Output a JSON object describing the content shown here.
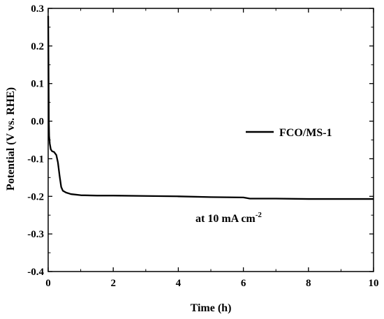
{
  "chart_data": {
    "type": "line",
    "xlabel": "Time (h)",
    "ylabel": "Potential (V vs. RHE)",
    "xlim": [
      0,
      10
    ],
    "ylim": [
      -0.4,
      0.3
    ],
    "x_ticks": [
      0,
      2,
      4,
      6,
      8,
      10
    ],
    "y_ticks": [
      0.3,
      0.2,
      0.1,
      0.0,
      -0.1,
      -0.2,
      -0.3,
      -0.4
    ],
    "x_tick_labels": [
      "0",
      "2",
      "4",
      "6",
      "8",
      "10"
    ],
    "y_tick_labels": [
      "0.3",
      "0.2",
      "0.1",
      "0.0",
      "-0.1",
      "-0.2",
      "-0.3",
      "-0.4"
    ],
    "grid": false,
    "legend_position": "right",
    "annotation": {
      "text": "at 10 mA cm",
      "superscript": "-2"
    },
    "series": [
      {
        "name": "FCO/MS-1",
        "color": "#000000",
        "x": [
          0,
          0.01,
          0.02,
          0.03,
          0.05,
          0.08,
          0.12,
          0.18,
          0.25,
          0.3,
          0.35,
          0.4,
          0.45,
          0.55,
          0.7,
          1.0,
          1.5,
          2,
          3,
          4,
          5,
          6,
          6.2,
          7,
          8,
          9,
          10
        ],
        "y": [
          0.28,
          0.15,
          0.0,
          -0.04,
          -0.06,
          -0.075,
          -0.08,
          -0.082,
          -0.09,
          -0.11,
          -0.145,
          -0.175,
          -0.185,
          -0.19,
          -0.194,
          -0.197,
          -0.198,
          -0.198,
          -0.199,
          -0.2,
          -0.202,
          -0.203,
          -0.206,
          -0.206,
          -0.207,
          -0.207,
          -0.207
        ]
      }
    ]
  }
}
